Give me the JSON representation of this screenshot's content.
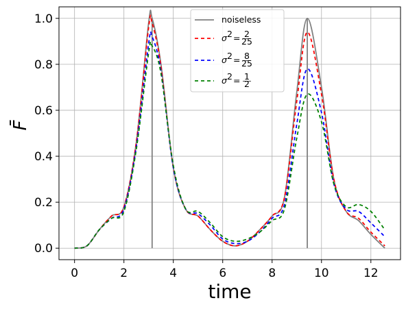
{
  "chart_data": {
    "type": "line",
    "xlabel": "time",
    "ylabel": "F̄",
    "xlim": [
      -0.63,
      13.2
    ],
    "ylim": [
      -0.05,
      1.05
    ],
    "xticks": [
      0,
      2,
      4,
      6,
      8,
      10,
      12
    ],
    "yticks": [
      0.0,
      0.2,
      0.4,
      0.6,
      0.8,
      1.0
    ],
    "xtick_labels": [
      "0",
      "2",
      "4",
      "6",
      "8",
      "10",
      "12"
    ],
    "ytick_labels": [
      "0.0",
      "0.2",
      "0.4",
      "0.6",
      "0.8",
      "1.0"
    ],
    "grid": true,
    "legend_position": "top-center",
    "vertical_lines": [
      {
        "x": 3.1416,
        "y0": 0,
        "y1": 1.0,
        "color": "#808080"
      },
      {
        "x": 9.4248,
        "y0": 0,
        "y1": 1.0,
        "color": "#808080"
      }
    ],
    "series": [
      {
        "name": "noiseless",
        "legend": {
          "base": "noiseless"
        },
        "color": "#808080",
        "dash": "solid",
        "x": [
          0,
          0.5,
          1.0,
          1.5,
          2.0,
          2.5,
          3.0,
          3.1416,
          3.5,
          4.0,
          4.5,
          5.0,
          5.5,
          6.0,
          6.5,
          7.0,
          7.5,
          8.0,
          8.5,
          9.0,
          9.4248,
          10.0,
          10.5,
          11.0,
          11.5,
          12.0,
          12.566
        ],
        "y": [
          0.0,
          0.01,
          0.08,
          0.14,
          0.18,
          0.46,
          0.98,
          1.0,
          0.8,
          0.35,
          0.17,
          0.14,
          0.08,
          0.03,
          0.01,
          0.03,
          0.08,
          0.14,
          0.22,
          0.68,
          1.0,
          0.7,
          0.3,
          0.16,
          0.12,
          0.06,
          0.0
        ]
      },
      {
        "name": "σ² = 2/25",
        "legend": {
          "base": "σ",
          "sup": "2",
          "num": "2",
          "den": "25"
        },
        "color": "#ff0000",
        "dash": "5,4",
        "x": [
          0,
          0.5,
          1.0,
          1.5,
          2.0,
          2.5,
          3.0,
          3.1416,
          3.5,
          4.0,
          4.5,
          5.0,
          5.5,
          6.0,
          6.5,
          7.0,
          7.5,
          8.0,
          8.5,
          9.0,
          9.4248,
          10.0,
          10.5,
          11.0,
          11.5,
          12.0,
          12.566
        ],
        "y": [
          0.0,
          0.01,
          0.08,
          0.14,
          0.18,
          0.46,
          0.96,
          0.98,
          0.79,
          0.35,
          0.17,
          0.14,
          0.08,
          0.03,
          0.01,
          0.03,
          0.08,
          0.14,
          0.22,
          0.64,
          0.94,
          0.67,
          0.3,
          0.16,
          0.13,
          0.07,
          0.01
        ]
      },
      {
        "name": "σ² = 8/25",
        "legend": {
          "base": "σ",
          "sup": "2",
          "num": "8",
          "den": "25"
        },
        "color": "#0000ff",
        "dash": "5,4",
        "x": [
          0,
          0.5,
          1.0,
          1.5,
          2.0,
          2.5,
          3.0,
          3.1416,
          3.5,
          4.0,
          4.5,
          5.0,
          5.5,
          6.0,
          6.5,
          7.0,
          7.5,
          8.0,
          8.5,
          9.0,
          9.4248,
          10.0,
          10.5,
          11.0,
          11.5,
          12.0,
          12.566
        ],
        "y": [
          0.0,
          0.01,
          0.08,
          0.13,
          0.17,
          0.44,
          0.89,
          0.92,
          0.77,
          0.35,
          0.17,
          0.15,
          0.1,
          0.04,
          0.02,
          0.03,
          0.07,
          0.13,
          0.19,
          0.54,
          0.78,
          0.59,
          0.28,
          0.17,
          0.16,
          0.11,
          0.05
        ]
      },
      {
        "name": "σ² = 1/2",
        "legend": {
          "base": "σ",
          "sup": "2",
          "num": "1",
          "den": "2"
        },
        "color": "#008000",
        "dash": "5,4",
        "x": [
          0,
          0.5,
          1.0,
          1.5,
          2.0,
          2.5,
          3.0,
          3.1416,
          3.5,
          4.0,
          4.5,
          5.0,
          5.5,
          6.0,
          6.5,
          7.0,
          7.5,
          8.0,
          8.5,
          9.0,
          9.4248,
          10.0,
          10.5,
          11.0,
          11.5,
          12.0,
          12.566
        ],
        "y": [
          0.0,
          0.01,
          0.08,
          0.13,
          0.16,
          0.43,
          0.85,
          0.88,
          0.76,
          0.36,
          0.17,
          0.16,
          0.11,
          0.05,
          0.03,
          0.04,
          0.07,
          0.12,
          0.17,
          0.48,
          0.67,
          0.55,
          0.28,
          0.18,
          0.19,
          0.16,
          0.08
        ]
      }
    ]
  }
}
